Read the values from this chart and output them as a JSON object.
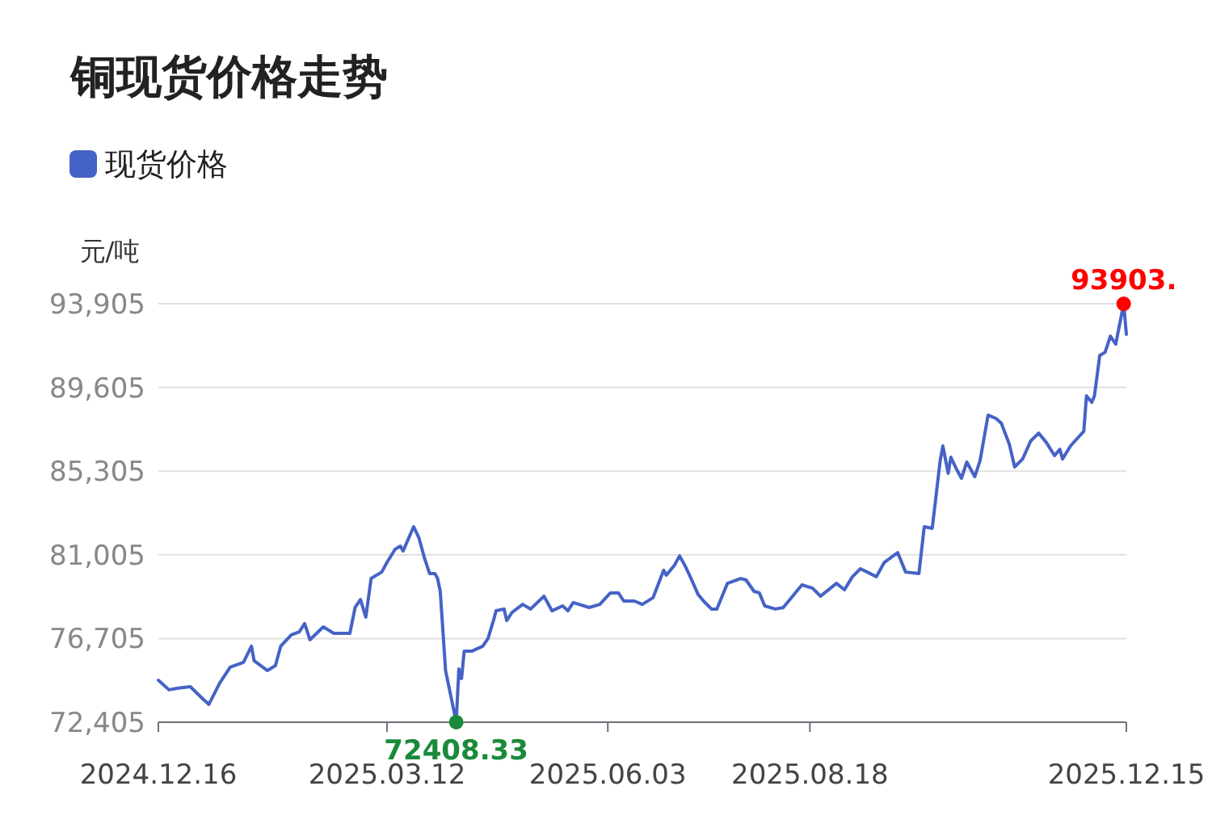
{
  "chart_data": {
    "type": "line",
    "title": "铜现货价格走势",
    "ylabel": "元/吨",
    "legend": "top left",
    "grid": "y",
    "marker": "none",
    "line_style": "solid",
    "xlim": [
      "2024-12-16",
      "2025-12-15"
    ],
    "xticks": [
      {
        "value": "2024-12-16",
        "label": "2024.12.16"
      },
      {
        "value": "2025-03-12",
        "label": "2025.03.12"
      },
      {
        "value": "2025-06-03",
        "label": "2025.06.03"
      },
      {
        "value": "2025-08-18",
        "label": "2025.08.18"
      },
      {
        "value": "2025-12-15",
        "label": "2025.12.15"
      }
    ],
    "ylim": [
      72405,
      93905
    ],
    "yticks": [
      {
        "value": 72405,
        "label": "72,405"
      },
      {
        "value": 76705,
        "label": "76,705"
      },
      {
        "value": 81005,
        "label": "81,005"
      },
      {
        "value": 85305,
        "label": "85,305"
      },
      {
        "value": 89605,
        "label": "89,605"
      },
      {
        "value": 93905,
        "label": "93,905"
      }
    ],
    "annotations": [
      {
        "text": "72408.33",
        "x": "2025-04-07",
        "y": 72408.33
      },
      {
        "text": "93903.",
        "x": "2025-12-14",
        "y": 93903
      }
    ],
    "x": [
      "2024-12-16",
      "2024-12-20",
      "2024-12-23",
      "2024-12-28",
      "2025-01-02",
      "2025-01-04",
      "2025-01-08",
      "2025-01-12",
      "2025-01-17",
      "2025-01-20",
      "2025-01-21",
      "2025-01-26",
      "2025-01-29",
      "2025-01-31",
      "2025-02-04",
      "2025-02-07",
      "2025-02-09",
      "2025-02-11",
      "2025-02-16",
      "2025-02-20",
      "2025-02-24",
      "2025-02-26",
      "2025-02-28",
      "2025-03-02",
      "2025-03-04",
      "2025-03-06",
      "2025-03-10",
      "2025-03-12",
      "2025-03-15",
      "2025-03-17",
      "2025-03-18",
      "2025-03-22",
      "2025-03-24",
      "2025-03-26",
      "2025-03-28",
      "2025-03-30",
      "2025-03-31",
      "2025-04-01",
      "2025-04-03",
      "2025-04-07",
      "2025-04-08",
      "2025-04-09",
      "2025-04-10",
      "2025-04-13",
      "2025-04-17",
      "2025-04-19",
      "2025-04-21",
      "2025-04-22",
      "2025-04-25",
      "2025-04-26",
      "2025-04-28",
      "2025-05-02",
      "2025-05-05",
      "2025-05-10",
      "2025-05-13",
      "2025-05-17",
      "2025-05-19",
      "2025-05-21",
      "2025-05-27",
      "2025-05-31",
      "2025-06-04",
      "2025-06-07",
      "2025-06-09",
      "2025-06-13",
      "2025-06-16",
      "2025-06-20",
      "2025-06-24",
      "2025-06-25",
      "2025-06-28",
      "2025-06-30",
      "2025-07-02",
      "2025-07-04",
      "2025-07-07",
      "2025-07-09",
      "2025-07-12",
      "2025-07-14",
      "2025-07-18",
      "2025-07-23",
      "2025-07-25",
      "2025-07-28",
      "2025-07-30",
      "2025-08-01",
      "2025-08-05",
      "2025-08-08",
      "2025-08-12",
      "2025-08-15",
      "2025-08-19",
      "2025-08-22",
      "2025-08-28",
      "2025-08-31",
      "2025-09-03",
      "2025-09-06",
      "2025-09-12",
      "2025-09-15",
      "2025-09-20",
      "2025-09-23",
      "2025-09-28",
      "2025-09-30",
      "2025-10-03",
      "2025-10-06",
      "2025-10-07",
      "2025-10-09",
      "2025-10-10",
      "2025-10-12",
      "2025-10-14",
      "2025-10-16",
      "2025-10-19",
      "2025-10-21",
      "2025-10-24",
      "2025-10-27",
      "2025-10-29",
      "2025-11-01",
      "2025-11-03",
      "2025-11-06",
      "2025-11-09",
      "2025-11-12",
      "2025-11-15",
      "2025-11-18",
      "2025-11-20",
      "2025-11-21",
      "2025-11-24",
      "2025-11-29",
      "2025-11-30",
      "2025-12-02",
      "2025-12-03",
      "2025-12-05",
      "2025-12-07",
      "2025-12-09",
      "2025-12-11",
      "2025-12-14",
      "2025-12-15"
    ],
    "series": [
      {
        "name": "现货价格",
        "color": "#4563c6",
        "values": [
          74560,
          74070,
          74150,
          74230,
          73570,
          73320,
          74400,
          75230,
          75480,
          76310,
          75560,
          75060,
          75310,
          76310,
          76890,
          77050,
          77470,
          76640,
          77300,
          76970,
          76970,
          76970,
          78300,
          78710,
          77800,
          79790,
          80120,
          80620,
          81290,
          81450,
          81200,
          82450,
          81870,
          80870,
          80040,
          80040,
          79790,
          79130,
          75060,
          72408.33,
          75140,
          74650,
          76060,
          76060,
          76310,
          76720,
          77630,
          78130,
          78220,
          77630,
          78050,
          78460,
          78220,
          78880,
          78130,
          78380,
          78130,
          78550,
          78300,
          78460,
          79050,
          79050,
          78630,
          78630,
          78460,
          78800,
          80210,
          79960,
          80460,
          80950,
          80460,
          79880,
          78960,
          78630,
          78220,
          78220,
          79540,
          79790,
          79710,
          79130,
          79050,
          78380,
          78220,
          78300,
          78960,
          79460,
          79290,
          78880,
          79540,
          79210,
          79880,
          80290,
          79880,
          80620,
          81120,
          80120,
          80040,
          82450,
          82370,
          85850,
          86600,
          85190,
          86020,
          85440,
          84940,
          85770,
          85020,
          85850,
          88180,
          88010,
          87760,
          86680,
          85520,
          85930,
          86850,
          87260,
          86760,
          86100,
          86430,
          85930,
          86600,
          87350,
          89170,
          88840,
          89170,
          91250,
          91410,
          92240,
          91830,
          93903,
          92330
        ]
      }
    ]
  }
}
